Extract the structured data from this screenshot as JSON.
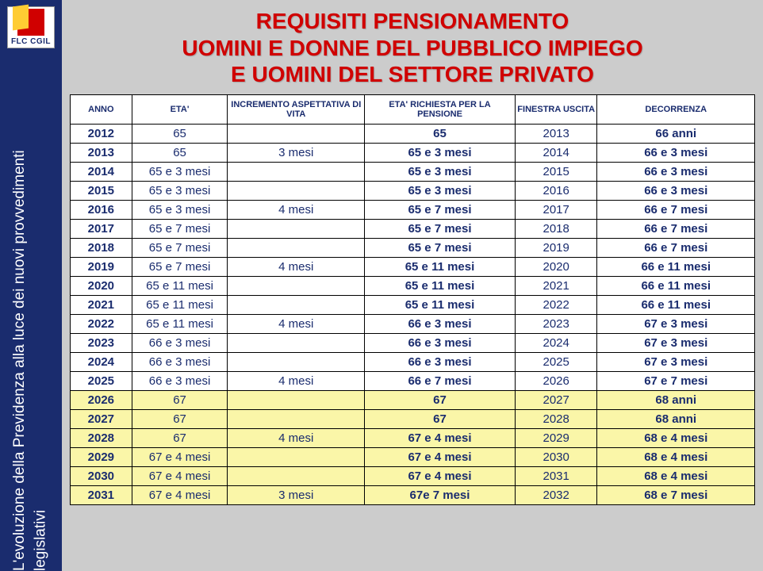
{
  "logo": {
    "text": "FLC CGIL"
  },
  "sidebar_text": "L'evoluzione della Previdenza alla luce\ndei nuovi provvedimenti legislativi",
  "title_lines": [
    "REQUISITI PENSIONAMENTO",
    "UOMINI E DONNE DEL  PUBBLICO IMPIEGO",
    "E UOMINI DEL SETTORE PRIVATO"
  ],
  "table": {
    "columns": [
      "ANNO",
      "ETA'",
      "INCREMENTO ASPETTATIVA DI VITA",
      "ETA' RICHIESTA PER LA PENSIONE",
      "FINESTRA USCITA",
      "DECORRENZA"
    ],
    "column_widths_pct": [
      9,
      14,
      20,
      22,
      12,
      23
    ],
    "bold_columns": [
      0,
      3,
      5
    ],
    "highlight_rows": [
      14,
      15,
      16,
      17,
      18,
      19
    ],
    "rows": [
      [
        "2012",
        "65",
        "",
        "65",
        "2013",
        "66 anni"
      ],
      [
        "2013",
        "65",
        "3 mesi",
        "65 e 3 mesi",
        "2014",
        "66 e 3 mesi"
      ],
      [
        "2014",
        "65 e 3 mesi",
        "",
        "65 e 3 mesi",
        "2015",
        "66 e 3 mesi"
      ],
      [
        "2015",
        "65 e 3 mesi",
        "",
        "65 e 3 mesi",
        "2016",
        "66 e 3 mesi"
      ],
      [
        "2016",
        "65 e 3 mesi",
        "4 mesi",
        "65 e 7 mesi",
        "2017",
        "66 e 7 mesi"
      ],
      [
        "2017",
        "65 e 7 mesi",
        "",
        "65 e 7 mesi",
        "2018",
        "66 e 7 mesi"
      ],
      [
        "2018",
        "65 e 7 mesi",
        "",
        "65 e 7 mesi",
        "2019",
        "66 e 7 mesi"
      ],
      [
        "2019",
        "65 e 7 mesi",
        "4 mesi",
        "65 e 11 mesi",
        "2020",
        "66 e 11 mesi"
      ],
      [
        "2020",
        "65 e 11 mesi",
        "",
        "65 e 11 mesi",
        "2021",
        "66 e 11 mesi"
      ],
      [
        "2021",
        "65 e 11 mesi",
        "",
        "65 e 11 mesi",
        "2022",
        "66 e 11 mesi"
      ],
      [
        "2022",
        "65 e 11 mesi",
        "4 mesi",
        "66 e 3 mesi",
        "2023",
        "67 e 3 mesi"
      ],
      [
        "2023",
        "66 e 3 mesi",
        "",
        "66 e 3 mesi",
        "2024",
        "67 e 3 mesi"
      ],
      [
        "2024",
        "66 e 3 mesi",
        "",
        "66 e 3 mesi",
        "2025",
        "67 e 3 mesi"
      ],
      [
        "2025",
        "66 e 3 mesi",
        "4 mesi",
        "66 e 7 mesi",
        "2026",
        "67 e 7 mesi"
      ],
      [
        "2026",
        "67",
        "",
        "67",
        "2027",
        "68 anni"
      ],
      [
        "2027",
        "67",
        "",
        "67",
        "2028",
        "68 anni"
      ],
      [
        "2028",
        "67",
        "4 mesi",
        "67 e 4 mesi",
        "2029",
        "68 e 4 mesi"
      ],
      [
        "2029",
        "67 e 4 mesi",
        "",
        "67 e 4 mesi",
        "2030",
        "68 e 4 mesi"
      ],
      [
        "2030",
        "67 e 4 mesi",
        "",
        "67 e 4 mesi",
        "2031",
        "68 e 4 mesi"
      ],
      [
        "2031",
        "67 e 4 mesi",
        "3 mesi",
        "67e 7 mesi",
        "2032",
        "68 e 7 mesi"
      ]
    ]
  },
  "colors": {
    "sidebar_bg": "#1a2c6e",
    "title_color": "#d00000",
    "text_color": "#1a2c6e",
    "highlight_bg": "#faf6a8",
    "page_bg": "#cccccc"
  }
}
